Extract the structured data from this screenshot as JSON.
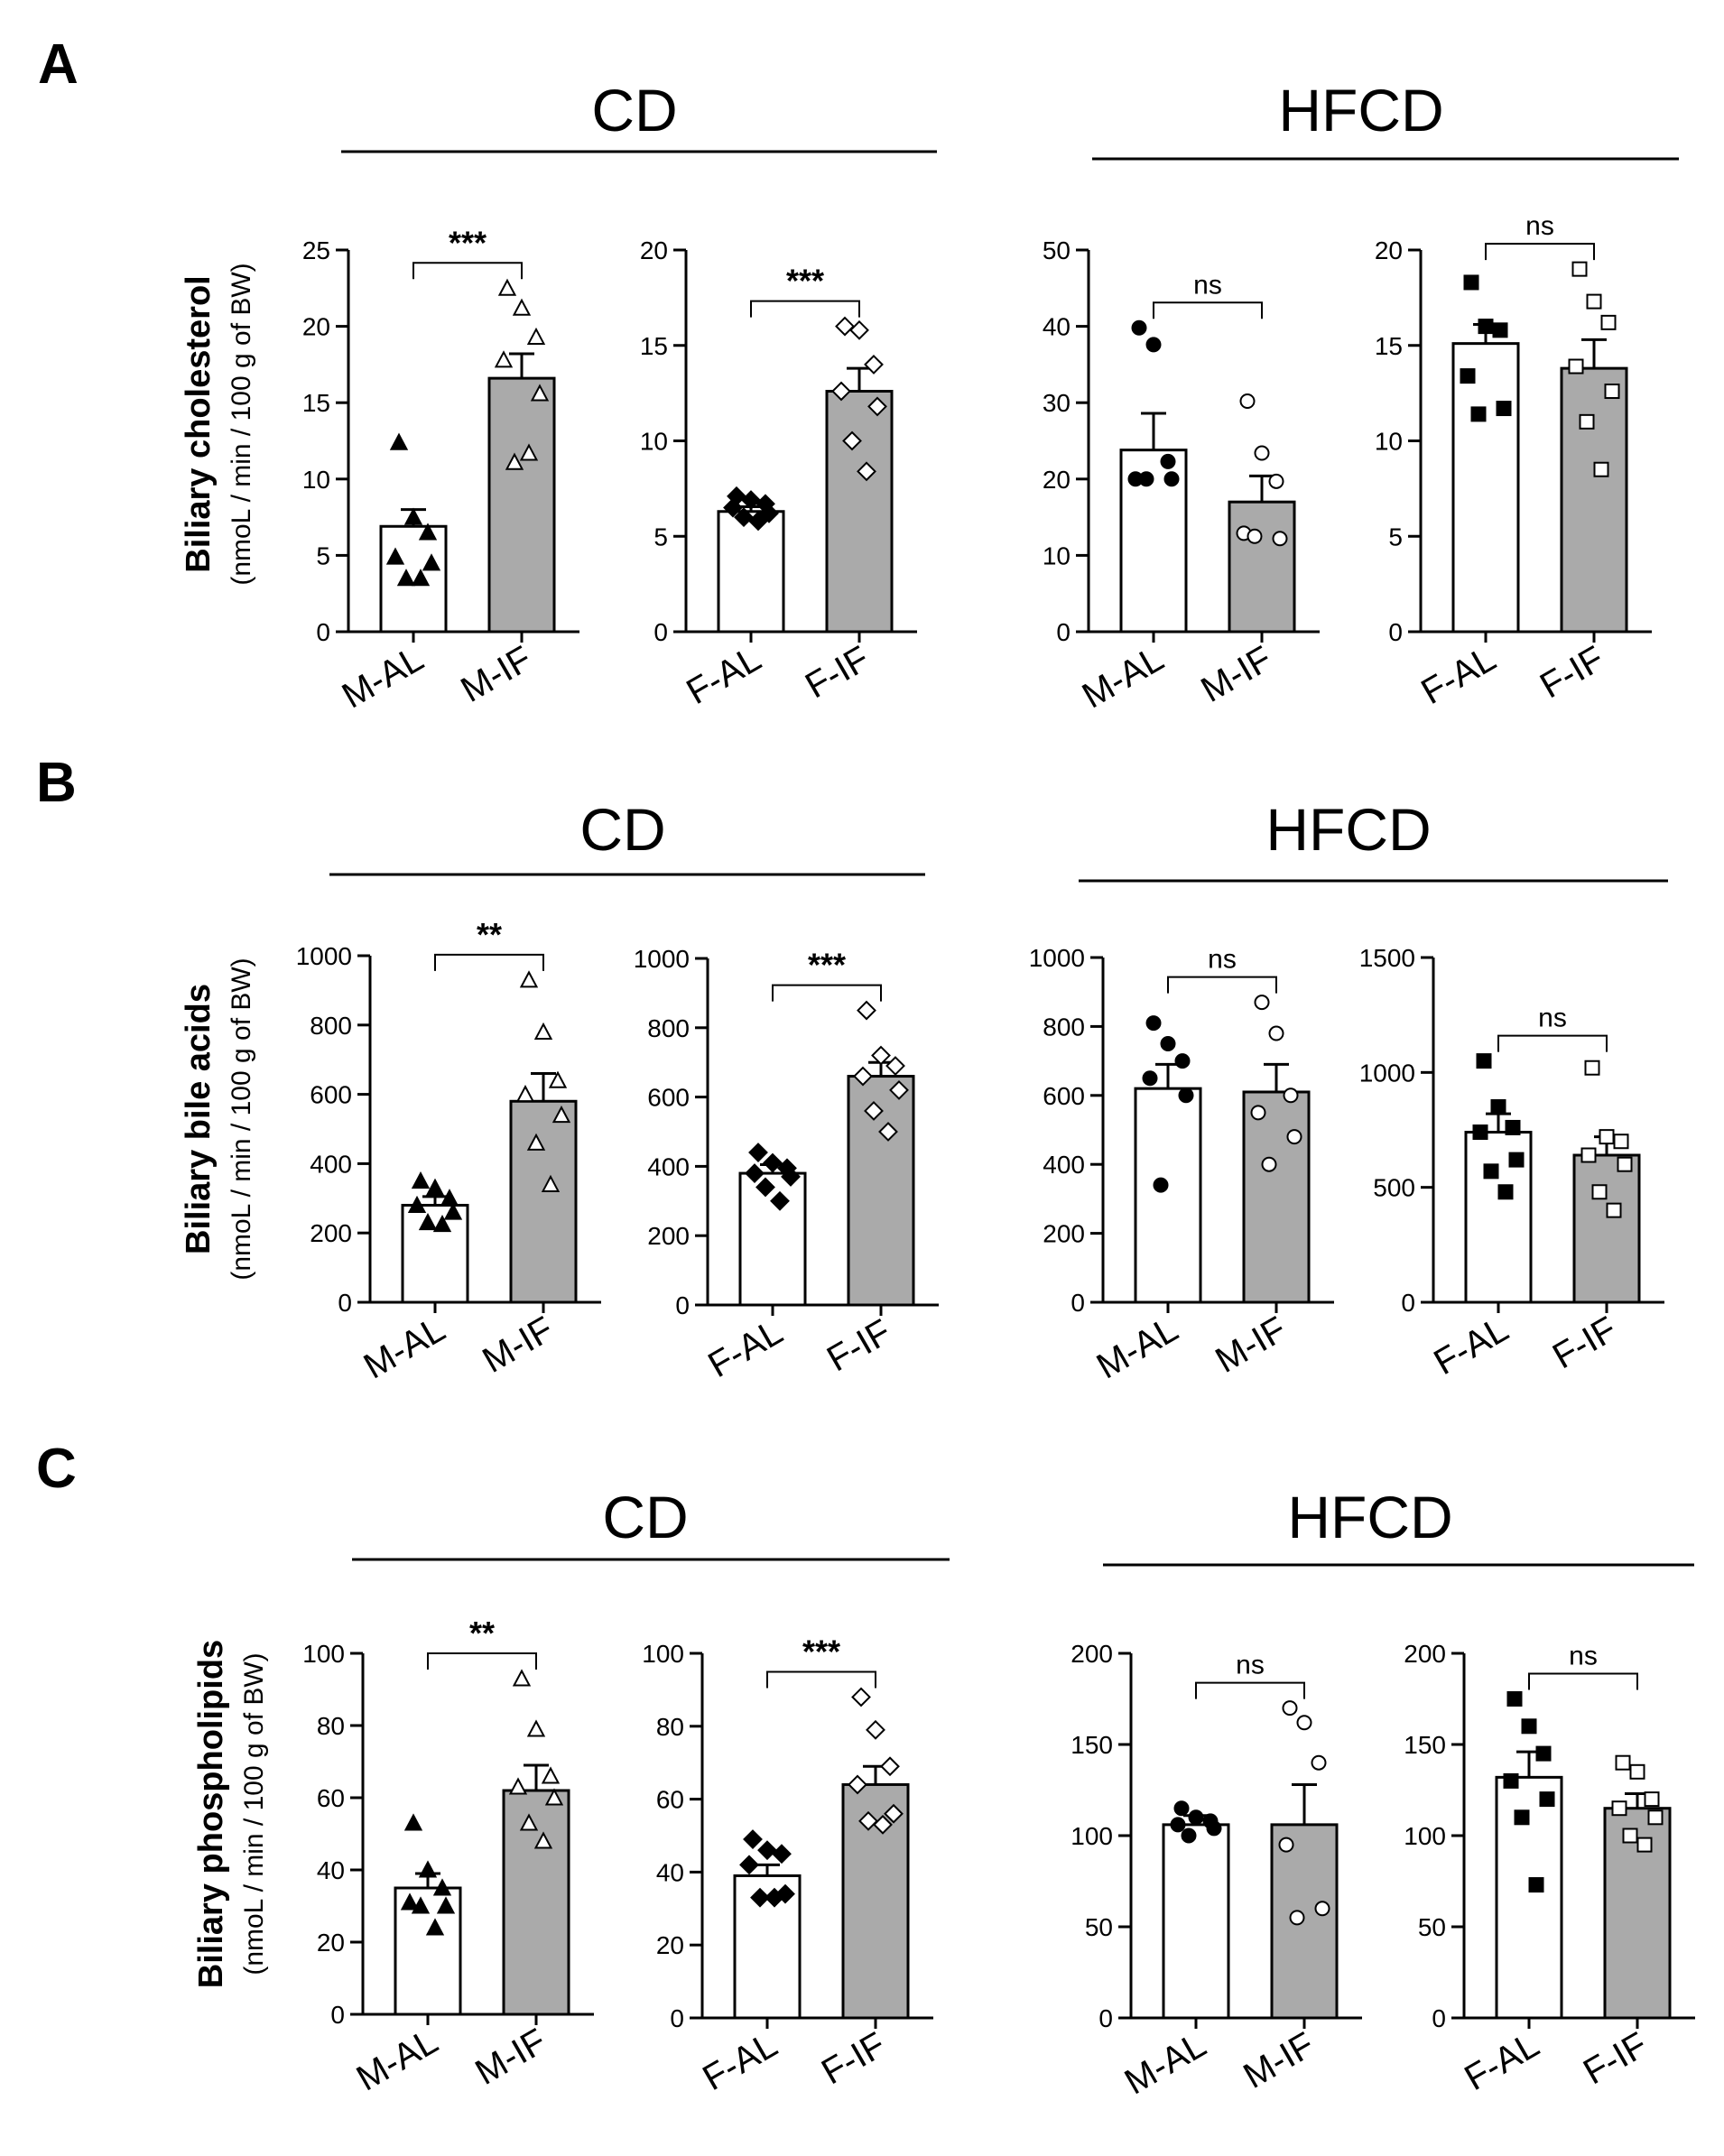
{
  "panels": [
    {
      "letter": "A",
      "ylabel": "Biliary cholesterol",
      "yunit": "(nmoL / min / 100 g of BW)",
      "groups": [
        {
          "label": "CD"
        },
        {
          "label": "HFCD"
        }
      ]
    },
    {
      "letter": "B",
      "ylabel": "Biliary bile acids",
      "yunit": "(nmoL / min / 100 g of BW)",
      "groups": [
        {
          "label": "CD"
        },
        {
          "label": "HFCD"
        }
      ]
    },
    {
      "letter": "C",
      "ylabel": "Biliary  phospholipids",
      "yunit": "(nmoL / min / 100 g of BW)",
      "groups": [
        {
          "label": "CD"
        },
        {
          "label": "HFCD"
        }
      ]
    }
  ],
  "colors": {
    "control_bar": "#ffffff",
    "treated_bar": "#aaaaaa",
    "ink": "#000000"
  },
  "chart_data": [
    {
      "type": "bar",
      "panel": "A",
      "diet": "CD",
      "categories": [
        "M-AL",
        "M-IF"
      ],
      "ylim": [
        0,
        25
      ],
      "yticks": [
        0,
        5,
        10,
        15,
        20,
        25
      ],
      "marker": "triangle",
      "significance": "***",
      "series": [
        {
          "values": [
            6.9,
            16.6
          ],
          "sem": [
            1.1,
            1.6
          ],
          "points": [
            [
              12.4,
              7.5,
              6.5,
              4.9,
              4.5,
              3.5,
              3.5
            ],
            [
              22.5,
              21.2,
              19.3,
              17.8,
              15.6,
              11.1,
              11.7
            ]
          ]
        }
      ]
    },
    {
      "type": "bar",
      "panel": "A",
      "diet": "CD",
      "categories": [
        "F-AL",
        "F-IF"
      ],
      "ylim": [
        0,
        20
      ],
      "yticks": [
        0,
        5,
        10,
        15,
        20
      ],
      "marker": "diamond",
      "significance": "***",
      "series": [
        {
          "values": [
            6.3,
            12.6
          ],
          "sem": [
            0.25,
            1.2
          ],
          "points": [
            [
              7.1,
              6.9,
              6.7,
              6.5,
              6.2,
              6.0,
              5.8
            ],
            [
              16.0,
              15.8,
              14.0,
              12.6,
              11.8,
              10.0,
              8.4
            ]
          ]
        }
      ]
    },
    {
      "type": "bar",
      "panel": "A",
      "diet": "HFCD",
      "categories": [
        "M-AL",
        "M-IF"
      ],
      "ylim": [
        0,
        50
      ],
      "yticks": [
        0,
        10,
        20,
        30,
        40,
        50
      ],
      "marker": "circle",
      "significance": "ns",
      "series": [
        {
          "values": [
            23.8,
            17.0
          ],
          "sem": [
            4.8,
            3.4
          ],
          "points": [
            [
              39.8,
              37.6,
              22.3,
              20.0,
              20.0,
              20.0
            ],
            [
              30.2,
              23.4,
              19.7,
              12.9,
              12.2,
              12.5
            ]
          ]
        }
      ]
    },
    {
      "type": "bar",
      "panel": "A",
      "diet": "HFCD",
      "categories": [
        "F-AL",
        "F-IF"
      ],
      "ylim": [
        0,
        20
      ],
      "yticks": [
        0,
        5,
        10,
        15,
        20
      ],
      "marker": "square",
      "significance": "ns",
      "series": [
        {
          "values": [
            15.1,
            13.8
          ],
          "sem": [
            1.0,
            1.5
          ],
          "points": [
            [
              18.3,
              16.0,
              15.8,
              13.4,
              11.7,
              11.4
            ],
            [
              19.0,
              17.3,
              16.2,
              13.9,
              12.6,
              11.0,
              8.5
            ]
          ]
        }
      ]
    },
    {
      "type": "bar",
      "panel": "B",
      "diet": "CD",
      "categories": [
        "M-AL",
        "M-IF"
      ],
      "ylim": [
        0,
        1000
      ],
      "yticks": [
        0,
        200,
        400,
        600,
        800,
        1000
      ],
      "marker": "triangle",
      "significance": "**",
      "series": [
        {
          "values": [
            280,
            580
          ],
          "sem": [
            25,
            80
          ],
          "points": [
            [
              350,
              330,
              300,
              280,
              260,
              230,
              225
            ],
            [
              930,
              780,
              640,
              600,
              540,
              460,
              340
            ]
          ]
        }
      ]
    },
    {
      "type": "bar",
      "panel": "B",
      "diet": "CD",
      "categories": [
        "F-AL",
        "F-IF"
      ],
      "ylim": [
        0,
        1000
      ],
      "yticks": [
        0,
        200,
        400,
        600,
        800,
        1000
      ],
      "marker": "diamond",
      "significance": "***",
      "series": [
        {
          "values": [
            380,
            660
          ],
          "sem": [
            25,
            40
          ],
          "points": [
            [
              440,
              410,
              395,
              380,
              370,
              340,
              300
            ],
            [
              850,
              720,
              690,
              660,
              620,
              560,
              500
            ]
          ]
        }
      ]
    },
    {
      "type": "bar",
      "panel": "B",
      "diet": "HFCD",
      "categories": [
        "M-AL",
        "M-IF"
      ],
      "ylim": [
        0,
        1000
      ],
      "yticks": [
        0,
        200,
        400,
        600,
        800,
        1000
      ],
      "marker": "circle",
      "significance": "ns",
      "series": [
        {
          "values": [
            620,
            610
          ],
          "sem": [
            70,
            80
          ],
          "points": [
            [
              810,
              750,
              700,
              650,
              600,
              340
            ],
            [
              870,
              780,
              600,
              550,
              480,
              400
            ]
          ]
        }
      ]
    },
    {
      "type": "bar",
      "panel": "B",
      "diet": "HFCD",
      "categories": [
        "F-AL",
        "F-IF"
      ],
      "ylim": [
        0,
        1500
      ],
      "yticks": [
        0,
        500,
        1000,
        1500
      ],
      "marker": "square",
      "significance": "ns",
      "series": [
        {
          "values": [
            740,
            640
          ],
          "sem": [
            80,
            80
          ],
          "points": [
            [
              1050,
              850,
              760,
              740,
              620,
              570,
              480
            ],
            [
              1020,
              720,
              700,
              640,
              600,
              480,
              400
            ]
          ]
        }
      ]
    },
    {
      "type": "bar",
      "panel": "C",
      "diet": "CD",
      "categories": [
        "M-AL",
        "M-IF"
      ],
      "ylim": [
        0,
        100
      ],
      "yticks": [
        0,
        20,
        40,
        60,
        80,
        100
      ],
      "marker": "triangle",
      "significance": "**",
      "series": [
        {
          "values": [
            35,
            62
          ],
          "sem": [
            4,
            7
          ],
          "points": [
            [
              53,
              40,
              35,
              31,
              30,
              30,
              24
            ],
            [
              93,
              79,
              66,
              63,
              60,
              53,
              48
            ]
          ]
        }
      ]
    },
    {
      "type": "bar",
      "panel": "C",
      "diet": "CD",
      "categories": [
        "F-AL",
        "F-IF"
      ],
      "ylim": [
        0,
        100
      ],
      "yticks": [
        0,
        20,
        40,
        60,
        80,
        100
      ],
      "marker": "diamond",
      "significance": "***",
      "series": [
        {
          "values": [
            39,
            64
          ],
          "sem": [
            3,
            5
          ],
          "points": [
            [
              49,
              46,
              45,
              42,
              34,
              33,
              33
            ],
            [
              88,
              79,
              69,
              64,
              56,
              54,
              53
            ]
          ]
        }
      ]
    },
    {
      "type": "bar",
      "panel": "C",
      "diet": "HFCD",
      "categories": [
        "M-AL",
        "M-IF"
      ],
      "ylim": [
        0,
        200
      ],
      "yticks": [
        0,
        50,
        100,
        150,
        200
      ],
      "marker": "circle",
      "significance": "ns",
      "series": [
        {
          "values": [
            106,
            106
          ],
          "sem": [
            5,
            22
          ],
          "points": [
            [
              115,
              110,
              108,
              106,
              104,
              100
            ],
            [
              170,
              162,
              140,
              95,
              60,
              55
            ]
          ]
        }
      ]
    },
    {
      "type": "bar",
      "panel": "C",
      "diet": "HFCD",
      "categories": [
        "F-AL",
        "F-IF"
      ],
      "ylim": [
        0,
        200
      ],
      "yticks": [
        0,
        50,
        100,
        150,
        200
      ],
      "marker": "square",
      "significance": "ns",
      "series": [
        {
          "values": [
            132,
            115
          ],
          "sem": [
            14,
            8
          ],
          "points": [
            [
              175,
              160,
              145,
              130,
              120,
              110,
              73
            ],
            [
              140,
              135,
              120,
              115,
              110,
              100,
              95
            ]
          ]
        }
      ]
    }
  ]
}
